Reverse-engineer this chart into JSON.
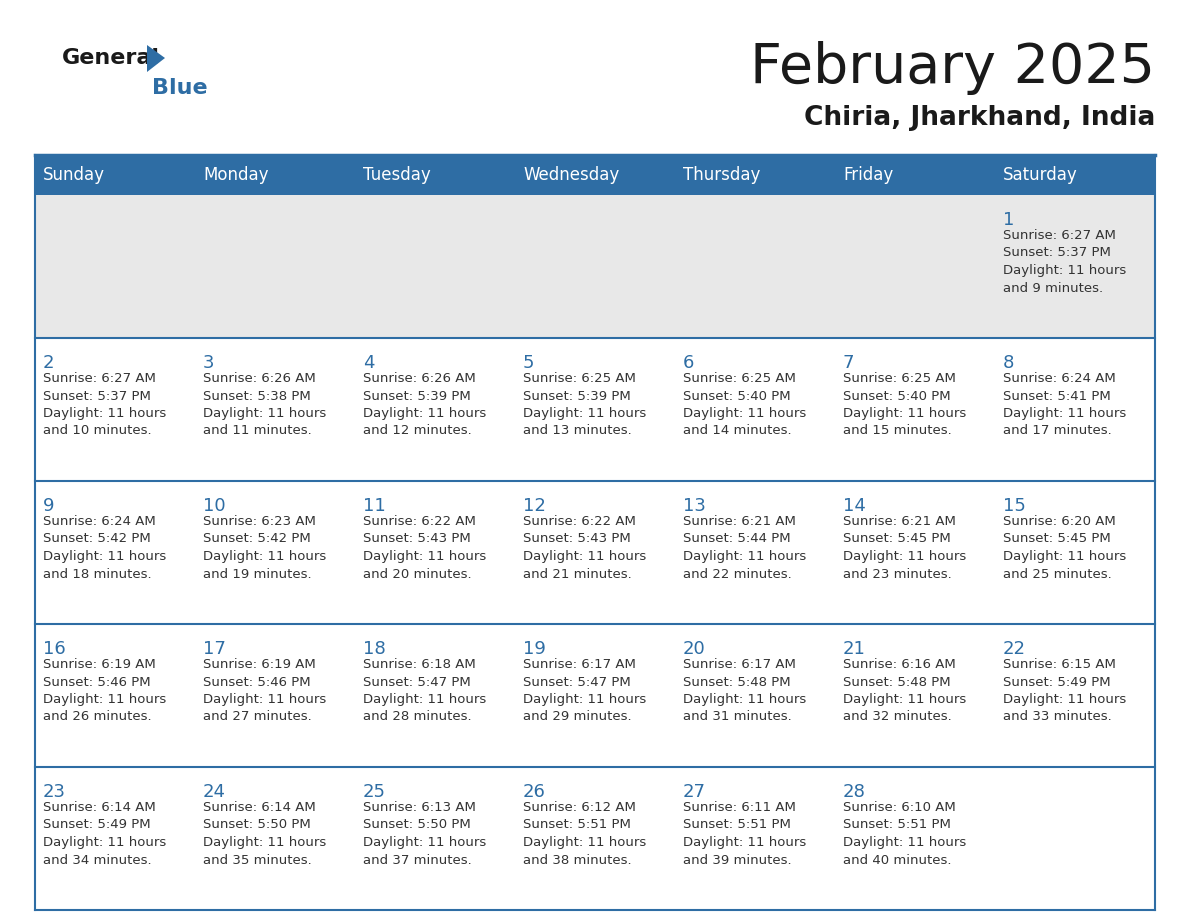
{
  "title": "February 2025",
  "subtitle": "Chiria, Jharkhand, India",
  "header_bg": "#2E6DA4",
  "header_text_color": "#FFFFFF",
  "row1_bg": "#E8E8E8",
  "row_bg": "#FFFFFF",
  "title_color": "#1a1a1a",
  "subtitle_color": "#1a1a1a",
  "line_color": "#2E6DA4",
  "day_number_color": "#2E6DA4",
  "cell_text_color": "#333333",
  "day_headers": [
    "Sunday",
    "Monday",
    "Tuesday",
    "Wednesday",
    "Thursday",
    "Friday",
    "Saturday"
  ],
  "weeks": [
    [
      {
        "day": null,
        "info": null
      },
      {
        "day": null,
        "info": null
      },
      {
        "day": null,
        "info": null
      },
      {
        "day": null,
        "info": null
      },
      {
        "day": null,
        "info": null
      },
      {
        "day": null,
        "info": null
      },
      {
        "day": 1,
        "info": "Sunrise: 6:27 AM\nSunset: 5:37 PM\nDaylight: 11 hours\nand 9 minutes."
      }
    ],
    [
      {
        "day": 2,
        "info": "Sunrise: 6:27 AM\nSunset: 5:37 PM\nDaylight: 11 hours\nand 10 minutes."
      },
      {
        "day": 3,
        "info": "Sunrise: 6:26 AM\nSunset: 5:38 PM\nDaylight: 11 hours\nand 11 minutes."
      },
      {
        "day": 4,
        "info": "Sunrise: 6:26 AM\nSunset: 5:39 PM\nDaylight: 11 hours\nand 12 minutes."
      },
      {
        "day": 5,
        "info": "Sunrise: 6:25 AM\nSunset: 5:39 PM\nDaylight: 11 hours\nand 13 minutes."
      },
      {
        "day": 6,
        "info": "Sunrise: 6:25 AM\nSunset: 5:40 PM\nDaylight: 11 hours\nand 14 minutes."
      },
      {
        "day": 7,
        "info": "Sunrise: 6:25 AM\nSunset: 5:40 PM\nDaylight: 11 hours\nand 15 minutes."
      },
      {
        "day": 8,
        "info": "Sunrise: 6:24 AM\nSunset: 5:41 PM\nDaylight: 11 hours\nand 17 minutes."
      }
    ],
    [
      {
        "day": 9,
        "info": "Sunrise: 6:24 AM\nSunset: 5:42 PM\nDaylight: 11 hours\nand 18 minutes."
      },
      {
        "day": 10,
        "info": "Sunrise: 6:23 AM\nSunset: 5:42 PM\nDaylight: 11 hours\nand 19 minutes."
      },
      {
        "day": 11,
        "info": "Sunrise: 6:22 AM\nSunset: 5:43 PM\nDaylight: 11 hours\nand 20 minutes."
      },
      {
        "day": 12,
        "info": "Sunrise: 6:22 AM\nSunset: 5:43 PM\nDaylight: 11 hours\nand 21 minutes."
      },
      {
        "day": 13,
        "info": "Sunrise: 6:21 AM\nSunset: 5:44 PM\nDaylight: 11 hours\nand 22 minutes."
      },
      {
        "day": 14,
        "info": "Sunrise: 6:21 AM\nSunset: 5:45 PM\nDaylight: 11 hours\nand 23 minutes."
      },
      {
        "day": 15,
        "info": "Sunrise: 6:20 AM\nSunset: 5:45 PM\nDaylight: 11 hours\nand 25 minutes."
      }
    ],
    [
      {
        "day": 16,
        "info": "Sunrise: 6:19 AM\nSunset: 5:46 PM\nDaylight: 11 hours\nand 26 minutes."
      },
      {
        "day": 17,
        "info": "Sunrise: 6:19 AM\nSunset: 5:46 PM\nDaylight: 11 hours\nand 27 minutes."
      },
      {
        "day": 18,
        "info": "Sunrise: 6:18 AM\nSunset: 5:47 PM\nDaylight: 11 hours\nand 28 minutes."
      },
      {
        "day": 19,
        "info": "Sunrise: 6:17 AM\nSunset: 5:47 PM\nDaylight: 11 hours\nand 29 minutes."
      },
      {
        "day": 20,
        "info": "Sunrise: 6:17 AM\nSunset: 5:48 PM\nDaylight: 11 hours\nand 31 minutes."
      },
      {
        "day": 21,
        "info": "Sunrise: 6:16 AM\nSunset: 5:48 PM\nDaylight: 11 hours\nand 32 minutes."
      },
      {
        "day": 22,
        "info": "Sunrise: 6:15 AM\nSunset: 5:49 PM\nDaylight: 11 hours\nand 33 minutes."
      }
    ],
    [
      {
        "day": 23,
        "info": "Sunrise: 6:14 AM\nSunset: 5:49 PM\nDaylight: 11 hours\nand 34 minutes."
      },
      {
        "day": 24,
        "info": "Sunrise: 6:14 AM\nSunset: 5:50 PM\nDaylight: 11 hours\nand 35 minutes."
      },
      {
        "day": 25,
        "info": "Sunrise: 6:13 AM\nSunset: 5:50 PM\nDaylight: 11 hours\nand 37 minutes."
      },
      {
        "day": 26,
        "info": "Sunrise: 6:12 AM\nSunset: 5:51 PM\nDaylight: 11 hours\nand 38 minutes."
      },
      {
        "day": 27,
        "info": "Sunrise: 6:11 AM\nSunset: 5:51 PM\nDaylight: 11 hours\nand 39 minutes."
      },
      {
        "day": 28,
        "info": "Sunrise: 6:10 AM\nSunset: 5:51 PM\nDaylight: 11 hours\nand 40 minutes."
      },
      {
        "day": null,
        "info": null
      }
    ]
  ]
}
